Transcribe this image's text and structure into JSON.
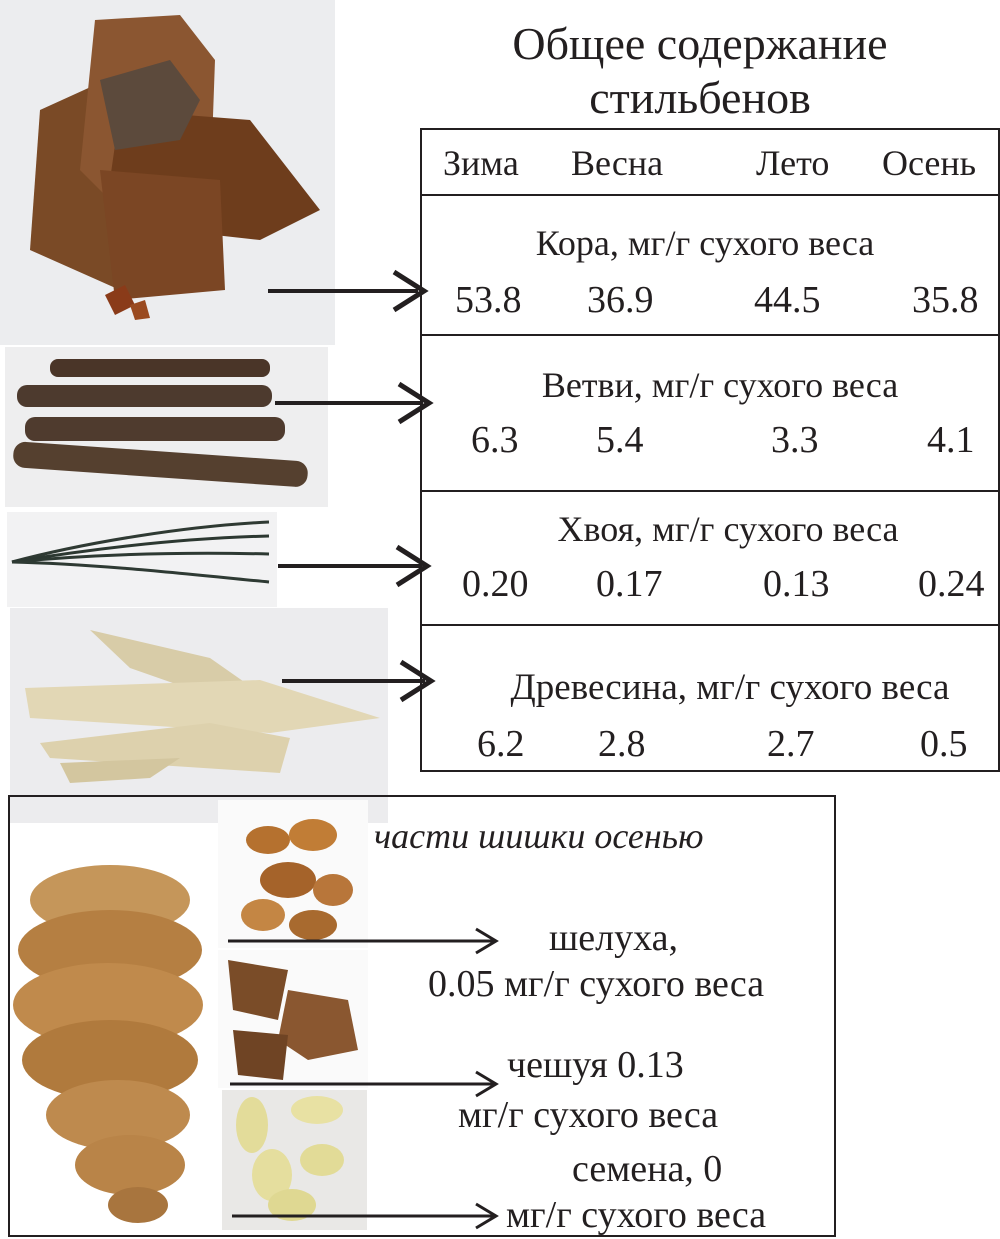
{
  "title_line1": "Общее содержание",
  "title_line2": "стильбенов",
  "seasons": [
    "Зима",
    "Весна",
    "Лето",
    "Осень"
  ],
  "rows": [
    {
      "label": "Кора, мг/г сухого веса",
      "values": [
        "53.8",
        "36.9",
        "44.5",
        "35.8"
      ]
    },
    {
      "label": "Ветви, мг/г сухого веса",
      "values": [
        "6.3",
        "5.4",
        "3.3",
        "4.1"
      ]
    },
    {
      "label": "Хвоя, мг/г сухого веса",
      "values": [
        "0.20",
        "0.17",
        "0.13",
        "0.24"
      ]
    },
    {
      "label": "Древесина, мг/г сухого веса",
      "values": [
        "6.2",
        "2.8",
        "2.7",
        "0.5"
      ]
    }
  ],
  "cone": {
    "heading": "части шишки осенью",
    "husk_line1": "шелуха,",
    "husk_line2": "0.05 мг/г сухого веса",
    "scale_line1": "чешуя 0.13",
    "scale_line2": "мг/г сухого веса",
    "seed_line1": "семена, 0",
    "seed_line2": "мг/г сухого веса"
  }
}
